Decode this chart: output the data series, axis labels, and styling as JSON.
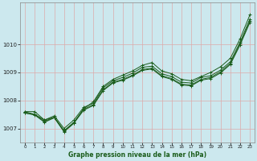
{
  "title": "Graphe pression niveau de la mer (hPa)",
  "bg_color": "#cce8ee",
  "grid_color": "#ddaaaa",
  "line_color": "#1a5c1a",
  "ylim": [
    1006.5,
    1011.5
  ],
  "yticks": [
    1007,
    1008,
    1009,
    1010
  ],
  "figsize": [
    3.2,
    2.0
  ],
  "dpi": 100,
  "line1": [
    1007.6,
    1007.6,
    1007.3,
    1007.4,
    1006.9,
    1007.2,
    1007.7,
    1007.95,
    1008.5,
    1008.75,
    1008.9,
    1009.05,
    1009.25,
    1009.35,
    1009.05,
    1008.95,
    1008.75,
    1008.7,
    1008.85,
    1009.0,
    1009.2,
    1009.5,
    1010.2,
    1011.05
  ],
  "line2": [
    1007.6,
    1007.5,
    1007.3,
    1007.45,
    1007.0,
    1007.3,
    1007.75,
    1007.9,
    1008.45,
    1008.7,
    1008.82,
    1008.97,
    1009.18,
    1009.22,
    1008.95,
    1008.85,
    1008.65,
    1008.62,
    1008.82,
    1008.88,
    1009.08,
    1009.38,
    1010.08,
    1010.9
  ],
  "line3": [
    1007.55,
    1007.5,
    1007.25,
    1007.4,
    1006.92,
    1007.22,
    1007.68,
    1007.85,
    1008.38,
    1008.65,
    1008.75,
    1008.9,
    1009.1,
    1009.15,
    1008.88,
    1008.78,
    1008.58,
    1008.55,
    1008.75,
    1008.82,
    1009.02,
    1009.32,
    1010.02,
    1010.82
  ],
  "line4": [
    1007.55,
    1007.48,
    1007.22,
    1007.38,
    1006.88,
    1007.18,
    1007.65,
    1007.82,
    1008.35,
    1008.62,
    1008.72,
    1008.87,
    1009.07,
    1009.12,
    1008.85,
    1008.75,
    1008.55,
    1008.52,
    1008.72,
    1008.78,
    1008.98,
    1009.28,
    1009.98,
    1010.78
  ]
}
